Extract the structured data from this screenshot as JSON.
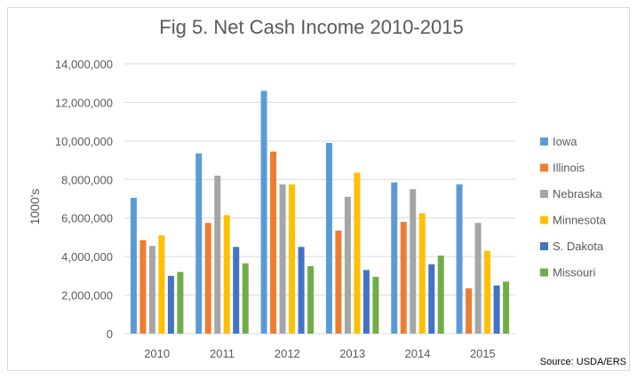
{
  "chart_data": {
    "type": "bar",
    "title": "Fig 5. Net Cash Income 2010-2015",
    "ylabel": "1000's",
    "xlabel": "",
    "source": "Source: USDA/ERS",
    "categories": [
      "2010",
      "2011",
      "2012",
      "2013",
      "2014",
      "2015"
    ],
    "ylim": [
      0,
      14000000
    ],
    "yticks": [
      0,
      2000000,
      4000000,
      6000000,
      8000000,
      10000000,
      12000000,
      14000000
    ],
    "ytick_labels": [
      "0",
      "2,000,000",
      "4,000,000",
      "6,000,000",
      "8,000,000",
      "10,000,000",
      "12,000,000",
      "14,000,000"
    ],
    "grid": true,
    "legend_position": "right",
    "series": [
      {
        "name": "Iowa",
        "color": "#5b9bd5",
        "values": [
          7050000,
          9350000,
          12600000,
          9900000,
          7850000,
          7750000
        ]
      },
      {
        "name": "Illinois",
        "color": "#ed7d31",
        "values": [
          4850000,
          5750000,
          9450000,
          5350000,
          5800000,
          2350000
        ]
      },
      {
        "name": "Nebraska",
        "color": "#a5a5a5",
        "values": [
          4550000,
          8200000,
          7750000,
          7100000,
          7500000,
          5750000
        ]
      },
      {
        "name": "Minnesota",
        "color": "#ffc000",
        "values": [
          5100000,
          6150000,
          7750000,
          8350000,
          6250000,
          4300000
        ]
      },
      {
        "name": "S. Dakota",
        "color": "#4472c4",
        "values": [
          3000000,
          4500000,
          4500000,
          3300000,
          3600000,
          2500000
        ]
      },
      {
        "name": "Missouri",
        "color": "#70ad47",
        "values": [
          3200000,
          3650000,
          3500000,
          2950000,
          4050000,
          2700000
        ]
      }
    ]
  }
}
